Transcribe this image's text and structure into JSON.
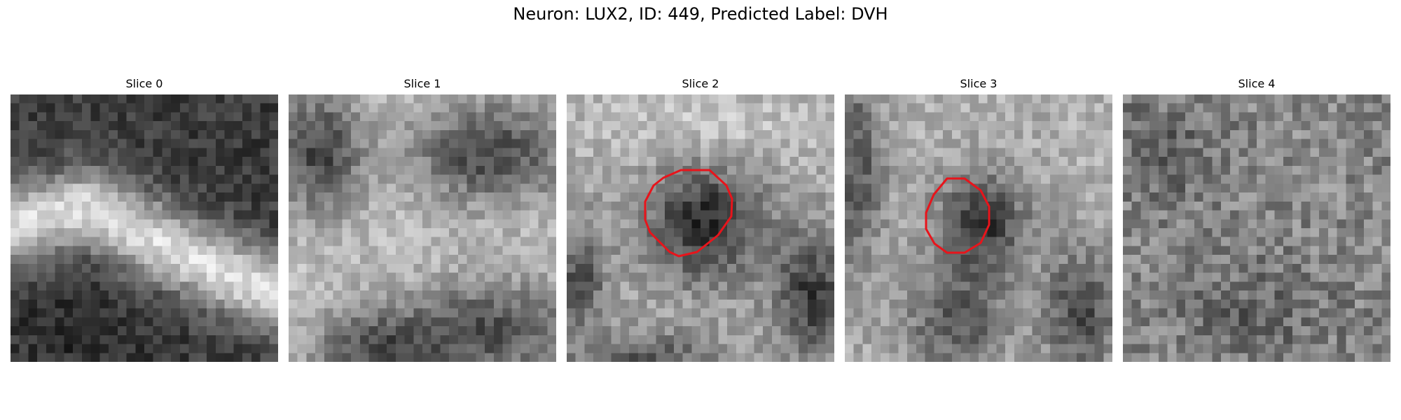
{
  "figure": {
    "title": "Neuron: LUX2, ID: 449, Predicted Label: DVH"
  },
  "panels": [
    {
      "title": "Slice 0",
      "roi_outline": false
    },
    {
      "title": "Slice 1",
      "roi_outline": false
    },
    {
      "title": "Slice 2",
      "roi_outline": true
    },
    {
      "title": "Slice 3",
      "roi_outline": true
    },
    {
      "title": "Slice 4",
      "roi_outline": false
    }
  ],
  "colors": {
    "background": "#ffffff",
    "outline": "#e8141b"
  },
  "image": {
    "colormap": "gray",
    "grid_size": 30
  }
}
